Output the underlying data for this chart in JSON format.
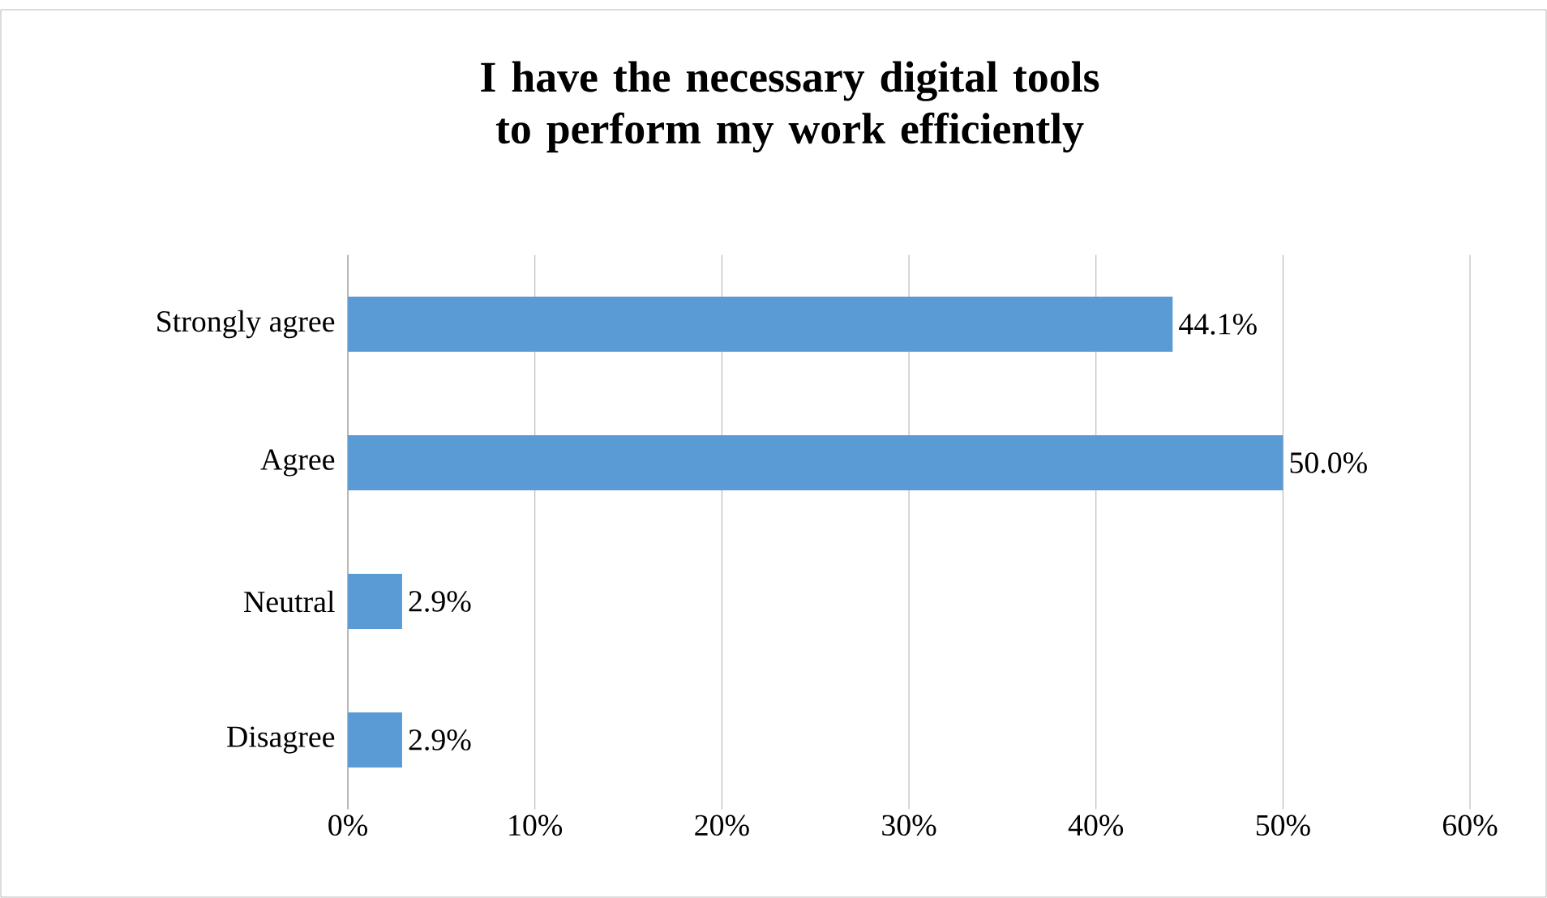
{
  "chart_data": {
    "type": "bar",
    "orientation": "horizontal",
    "title": "I have the necessary digital tools to perform my work efficiently",
    "categories": [
      "Strongly agree",
      "Agree",
      "Neutral",
      "Disagree"
    ],
    "values": [
      44.1,
      50.0,
      2.9,
      2.9
    ],
    "color": "#5b9bd5",
    "value_labels": [
      "44.1%",
      "50.0%",
      "2.9%",
      "2.9%"
    ],
    "xlim": [
      0,
      60
    ],
    "xticks": [
      {
        "value": 0,
        "label": "0%"
      },
      {
        "value": 10,
        "label": "10%"
      },
      {
        "value": 20,
        "label": "20%"
      },
      {
        "value": 30,
        "label": "30%"
      },
      {
        "value": 40,
        "label": "40%"
      },
      {
        "value": 50,
        "label": "50%"
      },
      {
        "value": 60,
        "label": "60%"
      }
    ],
    "grid": "x"
  }
}
